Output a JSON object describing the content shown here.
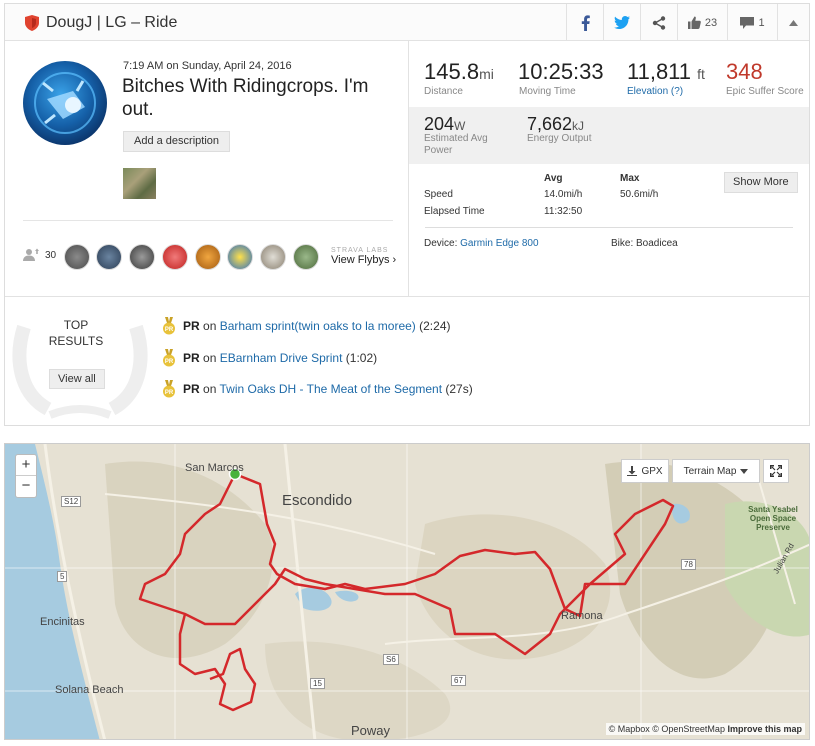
{
  "header": {
    "title": "DougJ | LG – Ride",
    "kudos_count": "23",
    "comment_count": "1"
  },
  "activity": {
    "time_line": "7:19 AM on Sunday, April 24, 2016",
    "title": "Bitches With Ridingcrops. I'm out.",
    "add_description": "Add a description",
    "kudos_total": "30",
    "flyby_label": "STRAVA LABS",
    "flyby_link": "View Flybys ›"
  },
  "stats": {
    "distance": {
      "value": "145.8",
      "unit": "mi",
      "label": "Distance"
    },
    "moving_time": {
      "value": "10:25:33",
      "label": "Moving Time"
    },
    "elevation": {
      "value": "11,811",
      "unit": "ft",
      "label": "Elevation (?)"
    },
    "suffer": {
      "value": "348",
      "label": "Epic Suffer Score"
    },
    "power": {
      "value": "204",
      "unit": "W",
      "label": "Estimated Avg Power"
    },
    "energy": {
      "value": "7,662",
      "unit": "kJ",
      "label": "Energy Output"
    },
    "table": {
      "avg_header": "Avg",
      "max_header": "Max",
      "speed_label": "Speed",
      "speed_avg": "14.0mi/h",
      "speed_max": "50.6mi/h",
      "elapsed_label": "Elapsed Time",
      "elapsed_avg": "11:32:50"
    },
    "show_more": "Show More",
    "device_label": "Device:",
    "device_value": "Garmin Edge 800",
    "bike_label": "Bike:",
    "bike_value": "Boadicea"
  },
  "top_results": {
    "heading": "TOP RESULTS",
    "view_all": "View all",
    "items": [
      {
        "badge": "PR",
        "on": "on",
        "segment": "Barham sprint(twin oaks to la moree)",
        "time": "(2:24)"
      },
      {
        "badge": "PR",
        "on": "on",
        "segment": "EBarnham Drive Sprint",
        "time": "(1:02)"
      },
      {
        "badge": "PR",
        "on": "on",
        "segment": "Twin Oaks DH - The Meat of the Segment",
        "time": "(27s)"
      }
    ]
  },
  "map": {
    "zoom_in": "+",
    "zoom_out": "−",
    "gpx": "GPX",
    "terrain": "Terrain Map",
    "labels": {
      "san_marcos": "San Marcos",
      "escondido": "Escondido",
      "encinitas": "Encinitas",
      "solana": "Solana Beach",
      "poway": "Poway",
      "ramona": "Ramona",
      "santa_ysabel": "Santa Ysabel Open Space Preserve",
      "julian_rd": "Julian Rd",
      "r5": "5",
      "r78": "78",
      "r67": "67",
      "r15": "15",
      "rs12": "S12",
      "rs6": "S6"
    },
    "attribution_a": "© Mapbox © OpenStreetMap",
    "attribution_b": "Improve this map"
  },
  "colors": {
    "accent_red": "#c0392b",
    "link_blue": "#1e6aa8",
    "route_red": "#d4282b",
    "facebook": "#3b5998",
    "twitter": "#1da1f2"
  }
}
